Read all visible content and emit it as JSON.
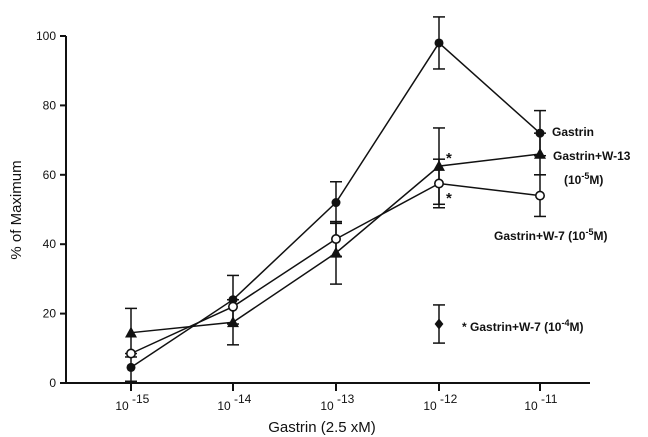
{
  "chart_data": {
    "type": "line",
    "xlabel": "Gastrin (2.5 xM)",
    "ylabel": "% of Maximum",
    "ylim": [
      0,
      100
    ],
    "yticks": [
      "0",
      "20",
      "40",
      "60",
      "80",
      "100"
    ],
    "xticks": [
      {
        "base": "10",
        "exp": "-15"
      },
      {
        "base": "10",
        "exp": "-14"
      },
      {
        "base": "10",
        "exp": "-13"
      },
      {
        "base": "10",
        "exp": "-12"
      },
      {
        "base": "10",
        "exp": "-11"
      }
    ],
    "x_scale": "log",
    "series": [
      {
        "name": "Gastrin",
        "marker": "filled-circle",
        "points": [
          {
            "x": "1e-15",
            "y": 4.5,
            "err": 4
          },
          {
            "x": "1e-14",
            "y": 24,
            "err": 7
          },
          {
            "x": "1e-13",
            "y": 52,
            "err": 6
          },
          {
            "x": "1e-12",
            "y": 98,
            "err": 7.5
          },
          {
            "x": "1e-11",
            "y": 72,
            "err": 6.5
          }
        ],
        "label": {
          "text": "Gastrin"
        }
      },
      {
        "name": "Gastrin+W-13 (10-5M)",
        "marker": "filled-triangle",
        "points": [
          {
            "x": "1e-15",
            "y": 14.5,
            "err": 7
          },
          {
            "x": "1e-14",
            "y": 17.5,
            "err": 6.5
          },
          {
            "x": "1e-13",
            "y": 37.5,
            "err": 9
          },
          {
            "x": "1e-12",
            "y": 62.5,
            "err": 11
          },
          {
            "x": "1e-11",
            "y": 66,
            "err": 6
          }
        ],
        "label": {
          "line1": "Gastrin+W-13",
          "line2_pre": "(10",
          "line2_sup": "-5",
          "line2_post": "M)"
        },
        "significant_point": "1e-12"
      },
      {
        "name": "Gastrin+W-7 (10-5M)",
        "marker": "open-circle",
        "points": [
          {
            "x": "1e-15",
            "y": 8.5,
            "err": 0
          },
          {
            "x": "1e-14",
            "y": 22,
            "err": 0
          },
          {
            "x": "1e-13",
            "y": 41.5,
            "err": 5
          },
          {
            "x": "1e-12",
            "y": 57.5,
            "err": 7
          },
          {
            "x": "1e-11",
            "y": 54,
            "err": 6
          }
        ],
        "label": {
          "pre": "Gastrin+W-7 (10",
          "sup": "-5",
          "post": "M)"
        },
        "significant_point": "1e-12"
      },
      {
        "name": "Gastrin+W-7 (10-4M)",
        "marker": "filled-diamond",
        "points": [
          {
            "x": "1e-12",
            "y": 17,
            "err": 5.5
          }
        ],
        "label": {
          "pre": "Gastrin+W-7 (10",
          "sup": "-4",
          "post": "M)"
        },
        "significant_point": "1e-12"
      }
    ],
    "significance_mark": "*"
  }
}
